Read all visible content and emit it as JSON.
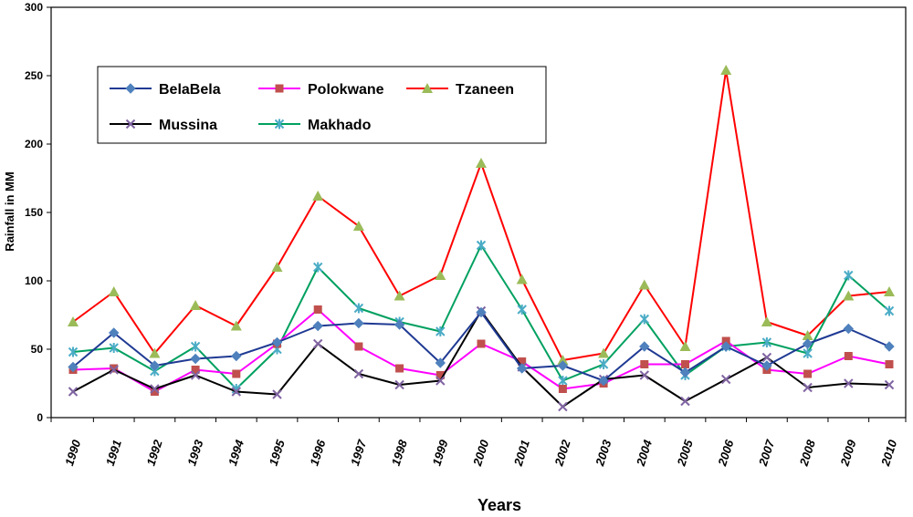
{
  "chart_data": {
    "type": "line",
    "title": "",
    "xlabel": "Years",
    "ylabel": "Rainfall in MM",
    "ylim": [
      0,
      300
    ],
    "yticks": [
      "0",
      "50",
      "100",
      "150",
      "200",
      "250",
      "300"
    ],
    "categories": [
      "1990",
      "1991",
      "1992",
      "1993",
      "1994",
      "1995",
      "1996",
      "1997",
      "1998",
      "1999",
      "2000",
      "2001",
      "2002",
      "2003",
      "2004",
      "2005",
      "2006",
      "2007",
      "2008",
      "2009",
      "2010"
    ],
    "legend_position": "top-left",
    "series": [
      {
        "name": "BelaBela",
        "color": "#1F3A93",
        "marker": "diamond",
        "marker_color": "#4F81BD",
        "values": [
          37,
          62,
          38,
          43,
          45,
          55,
          67,
          69,
          68,
          40,
          77,
          36,
          38,
          27,
          52,
          33,
          52,
          38,
          54,
          65,
          52
        ]
      },
      {
        "name": "Polokwane",
        "color": "#FF00FF",
        "marker": "square",
        "marker_color": "#C0504D",
        "values": [
          35,
          36,
          19,
          35,
          32,
          54,
          79,
          52,
          36,
          31,
          54,
          41,
          21,
          25,
          39,
          39,
          56,
          35,
          32,
          45,
          39
        ]
      },
      {
        "name": "Tzaneen",
        "color": "#FF0000",
        "marker": "triangle",
        "marker_color": "#9BBB59",
        "values": [
          70,
          92,
          47,
          82,
          67,
          110,
          162,
          140,
          89,
          104,
          186,
          101,
          42,
          47,
          97,
          52,
          254,
          70,
          60,
          89,
          92
        ]
      },
      {
        "name": "Mussina",
        "color": "#000000",
        "marker": "x",
        "marker_color": "#8064A2",
        "values": [
          19,
          35,
          21,
          31,
          19,
          17,
          54,
          32,
          24,
          27,
          78,
          37,
          8,
          28,
          31,
          12,
          28,
          44,
          22,
          25,
          24
        ]
      },
      {
        "name": "Makhado",
        "color": "#00A060",
        "marker": "star",
        "marker_color": "#4BACC6",
        "values": [
          48,
          51,
          34,
          52,
          21,
          50,
          110,
          80,
          70,
          63,
          126,
          79,
          27,
          39,
          72,
          31,
          52,
          55,
          47,
          104,
          78
        ]
      }
    ]
  }
}
